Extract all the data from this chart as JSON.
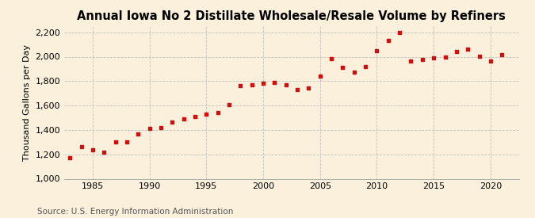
{
  "title": "Annual Iowa No 2 Distillate Wholesale/Resale Volume by Refiners",
  "ylabel": "Thousand Gallons per Day",
  "source": "Source: U.S. Energy Information Administration",
  "background_color": "#faf0dc",
  "plot_background_color": "#faf0dc",
  "marker_color": "#cc1111",
  "years": [
    1983,
    1984,
    1985,
    1986,
    1987,
    1988,
    1989,
    1990,
    1991,
    1992,
    1993,
    1994,
    1995,
    1996,
    1997,
    1998,
    1999,
    2000,
    2001,
    2002,
    2003,
    2004,
    2005,
    2006,
    2007,
    2008,
    2009,
    2010,
    2011,
    2012,
    2013,
    2014,
    2015,
    2016,
    2017,
    2018,
    2019,
    2020,
    2021
  ],
  "values": [
    1175,
    1265,
    1240,
    1220,
    1305,
    1300,
    1365,
    1415,
    1420,
    1465,
    1490,
    1510,
    1530,
    1540,
    1610,
    1760,
    1770,
    1780,
    1790,
    1770,
    1730,
    1745,
    1840,
    1985,
    1910,
    1875,
    1920,
    2050,
    2130,
    2195,
    1965,
    1980,
    1990,
    2000,
    2040,
    2060,
    2005,
    1965,
    2015
  ],
  "ylim": [
    1000,
    2250
  ],
  "xlim": [
    1982.5,
    2022.5
  ],
  "yticks": [
    1000,
    1200,
    1400,
    1600,
    1800,
    2000,
    2200
  ],
  "xticks": [
    1985,
    1990,
    1995,
    2000,
    2005,
    2010,
    2015,
    2020
  ],
  "grid_color": "#bbbbbb",
  "title_fontsize": 10.5,
  "axis_label_fontsize": 8,
  "tick_fontsize": 8,
  "source_fontsize": 7.5
}
